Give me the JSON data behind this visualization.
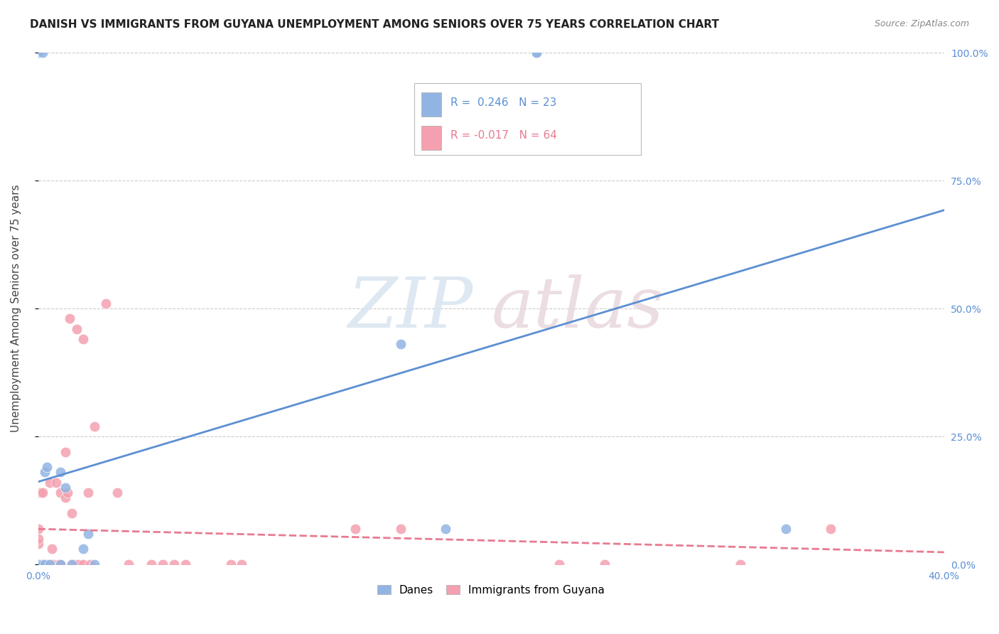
{
  "title": "DANISH VS IMMIGRANTS FROM GUYANA UNEMPLOYMENT AMONG SENIORS OVER 75 YEARS CORRELATION CHART",
  "source": "Source: ZipAtlas.com",
  "ylabel": "Unemployment Among Seniors over 75 years",
  "ytick_labels": [
    "0.0%",
    "25.0%",
    "50.0%",
    "75.0%",
    "100.0%"
  ],
  "ytick_values": [
    0.0,
    0.25,
    0.5,
    0.75,
    1.0
  ],
  "xlim": [
    0.0,
    0.4
  ],
  "ylim": [
    0.0,
    1.0
  ],
  "legend_label_danes": "Danes",
  "legend_label_immigrants": "Immigrants from Guyana",
  "R_danes": 0.246,
  "N_danes": 23,
  "R_immigrants": -0.017,
  "N_immigrants": 64,
  "color_danes": "#92b4e3",
  "color_immigrants": "#f4a0b0",
  "color_line_danes": "#5b8fd4",
  "color_line_immigrants": "#e87a90",
  "background_color": "#ffffff",
  "watermark_zip": "ZIP",
  "watermark_atlas": "atlas",
  "danes_x": [
    0.0,
    0.0,
    0.0,
    0.0,
    0.0,
    0.002,
    0.002,
    0.003,
    0.003,
    0.004,
    0.005,
    0.01,
    0.01,
    0.012,
    0.015,
    0.02,
    0.022,
    0.025,
    0.16,
    0.18,
    0.22,
    0.22,
    0.33
  ],
  "danes_y": [
    0.0,
    0.0,
    0.0,
    0.0,
    1.0,
    1.0,
    0.0,
    0.0,
    0.18,
    0.19,
    0.0,
    0.0,
    0.18,
    0.15,
    0.0,
    0.03,
    0.06,
    0.0,
    0.43,
    0.07,
    1.0,
    1.0,
    0.07
  ],
  "immigrants_x": [
    0.0,
    0.0,
    0.0,
    0.0,
    0.0,
    0.0,
    0.0,
    0.0,
    0.0,
    0.0,
    0.0,
    0.0,
    0.0,
    0.0,
    0.0,
    0.0,
    0.0,
    0.001,
    0.001,
    0.001,
    0.002,
    0.002,
    0.002,
    0.003,
    0.003,
    0.004,
    0.005,
    0.005,
    0.006,
    0.007,
    0.008,
    0.009,
    0.01,
    0.01,
    0.01,
    0.012,
    0.012,
    0.013,
    0.014,
    0.015,
    0.015,
    0.016,
    0.017,
    0.018,
    0.02,
    0.02,
    0.022,
    0.023,
    0.025,
    0.03,
    0.035,
    0.04,
    0.05,
    0.055,
    0.06,
    0.065,
    0.085,
    0.09,
    0.14,
    0.16,
    0.23,
    0.25,
    0.31,
    0.35
  ],
  "immigrants_y": [
    0.0,
    0.0,
    0.0,
    0.0,
    0.0,
    0.0,
    0.0,
    0.0,
    0.0,
    0.0,
    0.0,
    0.0,
    0.0,
    0.0,
    0.04,
    0.05,
    0.07,
    0.0,
    0.0,
    0.14,
    0.0,
    0.0,
    0.14,
    0.0,
    0.0,
    0.0,
    0.0,
    0.16,
    0.03,
    0.0,
    0.16,
    0.0,
    0.14,
    0.0,
    0.0,
    0.13,
    0.22,
    0.14,
    0.48,
    0.1,
    0.0,
    0.0,
    0.46,
    0.0,
    0.44,
    0.0,
    0.14,
    0.0,
    0.27,
    0.51,
    0.14,
    0.0,
    0.0,
    0.0,
    0.0,
    0.0,
    0.0,
    0.0,
    0.07,
    0.07,
    0.0,
    0.0,
    0.0,
    0.07
  ]
}
